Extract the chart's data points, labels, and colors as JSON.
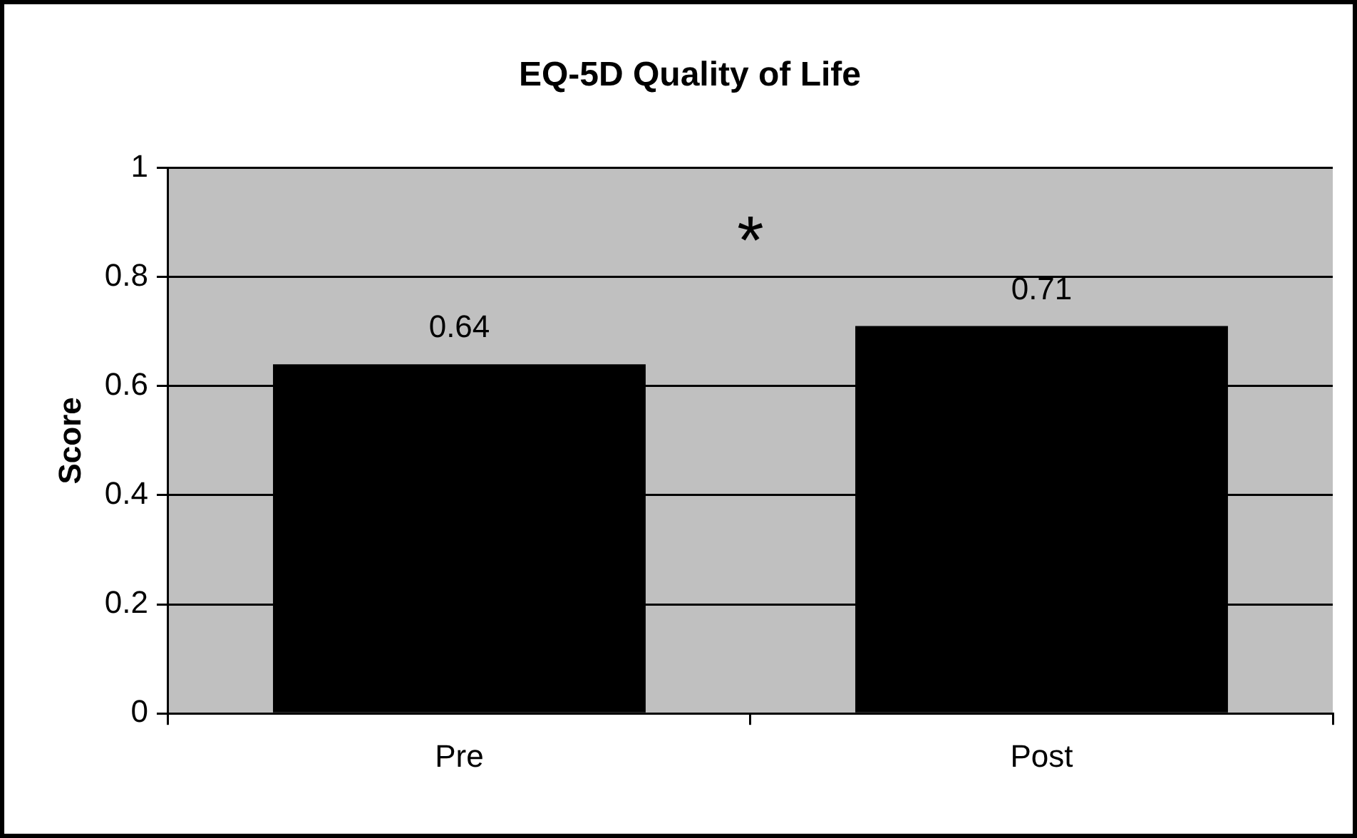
{
  "chart_data": {
    "type": "bar",
    "title": "EQ-5D Quality of Life",
    "ylabel": "Score",
    "categories": [
      "Pre",
      "Post"
    ],
    "values": [
      0.64,
      0.71
    ],
    "color": "#000000",
    "ylim": [
      0,
      1
    ],
    "yticks": [
      0,
      0.2,
      0.4,
      0.6,
      0.8,
      1
    ],
    "grid": "y",
    "legend": false,
    "data_labels": true,
    "annotations": [
      "*"
    ]
  }
}
